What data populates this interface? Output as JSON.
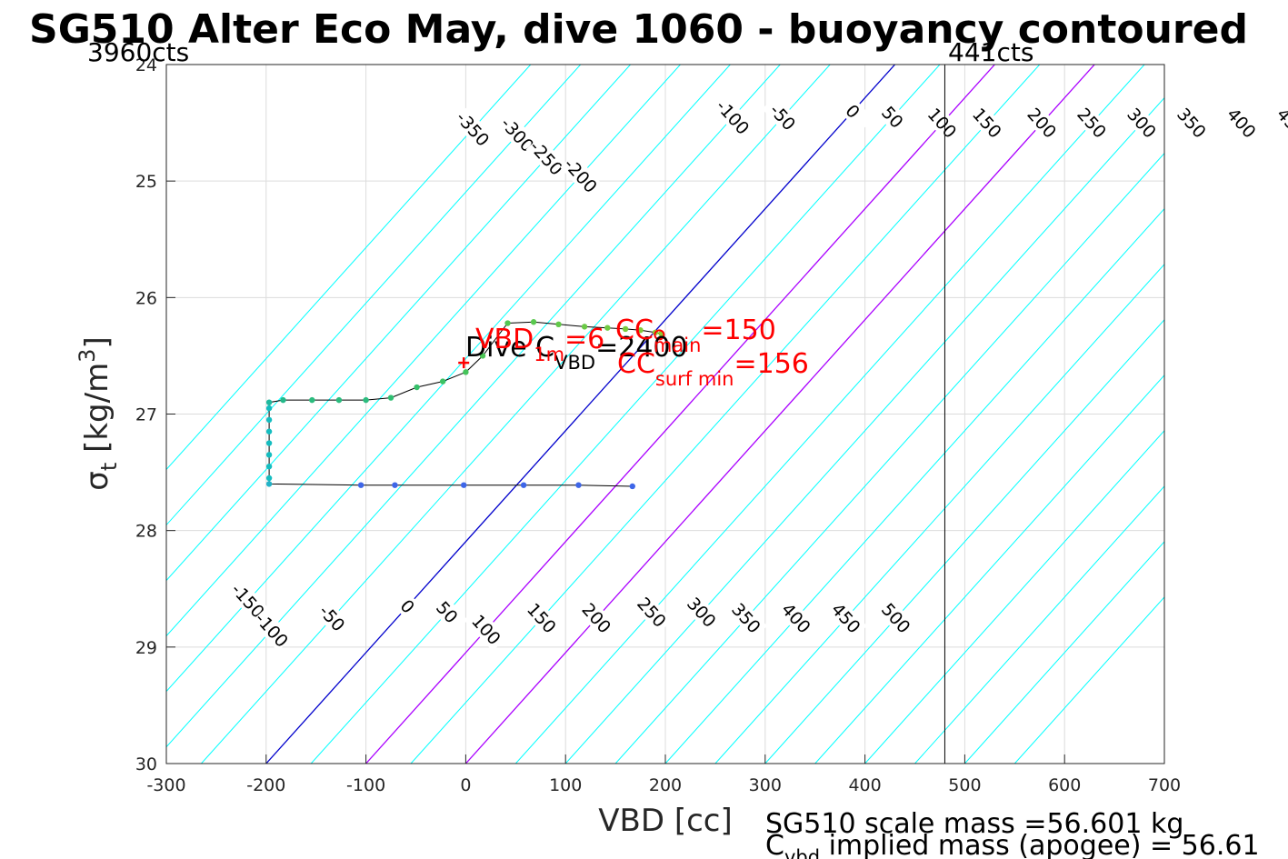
{
  "chart_data": {
    "type": "line",
    "title": "SG510 Alter Eco May, dive 1060 - buoyancy contoured",
    "xlabel": "VBD [cc]",
    "ylabel": {
      "base": "σ",
      "sub": "t",
      "unit_prefix": " [kg/m",
      "unit_sup": "3",
      "unit_suffix": "]"
    },
    "xlim": [
      -300,
      700
    ],
    "ylim": [
      24,
      30
    ],
    "y_reversed": true,
    "x_ticks": [
      -300,
      -200,
      -100,
      0,
      100,
      200,
      300,
      400,
      500,
      600,
      700
    ],
    "x_tick_labels": [
      "-300",
      "-200",
      "-100",
      "0",
      "100",
      "200",
      "300",
      "400",
      "500",
      "600",
      "700"
    ],
    "y_ticks": [
      24,
      25,
      26,
      27,
      28,
      29,
      30
    ],
    "y_tick_labels": [
      "24",
      "25",
      "26",
      "27",
      "28",
      "29",
      "30"
    ],
    "grid": true,
    "contour_slope_cc_per_sigma": 105,
    "contour_ref_sigma": 30,
    "contours": [
      {
        "level": -350,
        "label": "-350",
        "x_at_ref": -565,
        "color": "#00ffff",
        "labels_at_sigma": [
          24.55
        ]
      },
      {
        "level": -300,
        "label": "-300",
        "x_at_ref": -515,
        "color": "#00ffff",
        "labels_at_sigma": [
          24.6
        ]
      },
      {
        "level": -250,
        "label": "-250",
        "x_at_ref": -465,
        "color": "#00ffff",
        "labels_at_sigma": [
          24.8
        ]
      },
      {
        "level": -200,
        "label": "-200",
        "x_at_ref": -415,
        "color": "#00ffff",
        "labels_at_sigma": [
          24.95
        ]
      },
      {
        "level": -150,
        "label": "-150",
        "x_at_ref": -365,
        "color": "#00ffff",
        "labels_at_sigma": [
          28.6
        ]
      },
      {
        "level": -100,
        "label": "-100",
        "x_at_ref": -315,
        "color": "#00ffff",
        "labels_at_sigma": [
          24.45,
          28.85
        ]
      },
      {
        "level": -50,
        "label": "-50",
        "x_at_ref": -265,
        "color": "#00ffff",
        "labels_at_sigma": [
          24.45,
          28.75
        ]
      },
      {
        "level": 0,
        "label": "0",
        "x_at_ref": -200,
        "color": "#0000cc",
        "labels_at_sigma": [
          24.4,
          28.65
        ]
      },
      {
        "level": 50,
        "label": "50",
        "x_at_ref": -155,
        "color": "#00ffff",
        "labels_at_sigma": [
          24.45,
          28.7
        ]
      },
      {
        "level": 100,
        "label": "100",
        "x_at_ref": -100,
        "color": "#aa00ff",
        "labels_at_sigma": [
          24.5,
          28.85
        ]
      },
      {
        "level": 150,
        "label": "150",
        "x_at_ref": -55,
        "color": "#00ffff",
        "labels_at_sigma": [
          24.5,
          28.75
        ]
      },
      {
        "level": 200,
        "label": "200",
        "x_at_ref": 0,
        "color": "#aa00ff",
        "labels_at_sigma": [
          24.5,
          28.75
        ]
      },
      {
        "level": 250,
        "label": "250",
        "x_at_ref": 50,
        "color": "#00ffff",
        "labels_at_sigma": [
          24.5,
          28.7
        ]
      },
      {
        "level": 300,
        "label": "300",
        "x_at_ref": 100,
        "color": "#00ffff",
        "labels_at_sigma": [
          24.5,
          28.7
        ]
      },
      {
        "level": 350,
        "label": "350",
        "x_at_ref": 150,
        "color": "#00ffff",
        "labels_at_sigma": [
          24.5,
          28.75
        ]
      },
      {
        "level": 400,
        "label": "400",
        "x_at_ref": 200,
        "color": "#00ffff",
        "labels_at_sigma": [
          24.5,
          28.75
        ]
      },
      {
        "level": 450,
        "label": "450",
        "x_at_ref": 250,
        "color": "#00ffff",
        "labels_at_sigma": [
          24.5,
          28.75
        ]
      },
      {
        "level": 500,
        "label": "500",
        "x_at_ref": 300,
        "color": "#00ffff",
        "labels_at_sigma": [
          24.5,
          28.75
        ]
      },
      {
        "level": 550,
        "label": "",
        "x_at_ref": 350,
        "color": "#00ffff",
        "labels_at_sigma": []
      },
      {
        "level": 600,
        "label": "",
        "x_at_ref": 400,
        "color": "#00ffff",
        "labels_at_sigma": []
      },
      {
        "level": 650,
        "label": "",
        "x_at_ref": 450,
        "color": "#00ffff",
        "labels_at_sigma": []
      },
      {
        "level": 700,
        "label": "",
        "x_at_ref": 500,
        "color": "#00ffff",
        "labels_at_sigma": []
      },
      {
        "level": 750,
        "label": "",
        "x_at_ref": 550,
        "color": "#00ffff",
        "labels_at_sigma": []
      }
    ],
    "vbd_limit_line": {
      "x": 480,
      "color": "#000000"
    },
    "counts_labels": {
      "left": "3960cts",
      "right": "441cts"
    },
    "dive_track": {
      "color": "#000000",
      "points": [
        [
          167,
          27.62
        ],
        [
          113,
          27.61
        ],
        [
          58,
          27.61
        ],
        [
          -2,
          27.61
        ],
        [
          -71,
          27.61
        ],
        [
          -105,
          27.61
        ],
        [
          -197,
          27.6
        ],
        [
          -197,
          27.55
        ],
        [
          -197,
          27.45
        ],
        [
          -197,
          27.35
        ],
        [
          -197,
          27.25
        ],
        [
          -197,
          27.15
        ],
        [
          -197,
          27.05
        ],
        [
          -197,
          26.95
        ],
        [
          -197,
          26.9
        ],
        [
          -183,
          26.88
        ],
        [
          -154,
          26.88
        ],
        [
          -127,
          26.88
        ],
        [
          -100,
          26.88
        ],
        [
          -75,
          26.86
        ],
        [
          -49,
          26.77
        ],
        [
          -23,
          26.72
        ],
        [
          0,
          26.64
        ],
        [
          17,
          26.5
        ],
        [
          42,
          26.22
        ],
        [
          68,
          26.21
        ],
        [
          93,
          26.23
        ],
        [
          119,
          26.25
        ],
        [
          142,
          26.26
        ],
        [
          160,
          26.27
        ],
        [
          175,
          26.28
        ],
        [
          190,
          26.3
        ],
        [
          196,
          26.31
        ]
      ],
      "point_colors": [
        "#3e66e8",
        "#3e66e8",
        "#3e66e8",
        "#3e66e8",
        "#3e66e8",
        "#3e66e8",
        "#22b3c8",
        "#14bdc0",
        "#14bdc0",
        "#14bdc0",
        "#14bdc0",
        "#14bdc0",
        "#14bdc0",
        "#14bdc0",
        "#1fb99e",
        "#24b98a",
        "#2bbc7e",
        "#2bbc7e",
        "#2bbc7e",
        "#2fbf72",
        "#36c06a",
        "#3dc263",
        "#45c45a",
        "#4cc657",
        "#52c752",
        "#5ac84e",
        "#62c94a",
        "#6ac946",
        "#72ca42",
        "#7acb3d",
        "#82cb38",
        "#8acb34",
        "#8fcc30"
      ]
    },
    "markers": [
      {
        "name": "VBD_1m",
        "x": -2,
        "y": 26.56,
        "symbol": "+",
        "color": "#ff0000"
      },
      {
        "name": "CC",
        "x": 194,
        "y": 26.32,
        "symbol": "o",
        "color": "#ff0000"
      }
    ],
    "annotations": {
      "vbd_1m": {
        "prefix": "VBD",
        "sub": "1m",
        "suffix": "=6"
      },
      "c_vbd": {
        "prefix": "Dive C",
        "sub": "VBD",
        "suffix": "=2400"
      },
      "cc_main": {
        "prefix": "CC",
        "sub": "main",
        "suffix": "=150"
      },
      "cc_surf": {
        "prefix": "CC",
        "sub": "surf min",
        "suffix": "=156"
      }
    },
    "footer": {
      "line1": "SG510 scale mass =56.601 kg",
      "line2_prefix": "C",
      "line2_sub": "vbd",
      "line2_suffix": " implied mass (apogee) = 56.61"
    }
  }
}
